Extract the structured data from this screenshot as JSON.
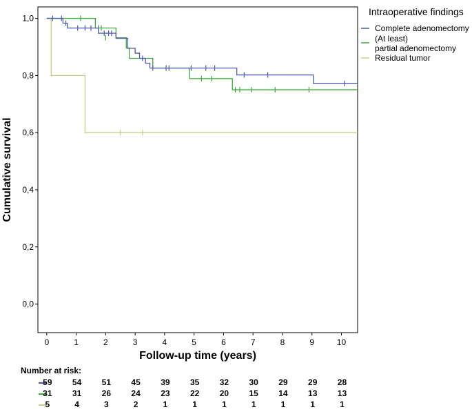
{
  "chart_data": {
    "type": "line",
    "subtype": "kaplan-meier",
    "xlabel": "Follow-up time (years)",
    "ylabel": "Cumulative survival",
    "xlim": [
      -0.3,
      10.55
    ],
    "ylim": [
      -0.1,
      1.04
    ],
    "xticks": [
      0,
      1,
      2,
      3,
      4,
      5,
      6,
      7,
      8,
      9,
      10
    ],
    "yticks": [
      0.0,
      0.2,
      0.4,
      0.6,
      0.8,
      1.0
    ],
    "ytick_labels": [
      "0,0",
      "0,2",
      "0,4",
      "0,6",
      "0,8",
      "1,0"
    ],
    "legend_title": "Intraoperative findings",
    "series": [
      {
        "name": "Complete adenomectomy",
        "color": "#4d5aa8",
        "steps": [
          [
            0,
            1.0
          ],
          [
            0.55,
            0.983
          ],
          [
            0.7,
            0.966
          ],
          [
            1.75,
            0.948
          ],
          [
            2.35,
            0.93
          ],
          [
            2.75,
            0.895
          ],
          [
            3.0,
            0.878
          ],
          [
            3.15,
            0.86
          ],
          [
            3.35,
            0.843
          ],
          [
            3.5,
            0.826
          ],
          [
            6.45,
            0.802
          ],
          [
            9.05,
            0.772
          ],
          [
            10.55,
            0.772
          ]
        ],
        "censor_x": [
          0.2,
          0.5,
          0.65,
          1.05,
          1.3,
          1.5,
          1.75,
          1.95,
          2.1,
          2.2,
          3.25,
          3.6,
          4.05,
          4.15,
          4.9,
          5.4,
          5.7,
          6.7,
          7.5,
          10.1
        ],
        "censor_y": [
          1.0,
          1.0,
          0.983,
          0.966,
          0.966,
          0.966,
          0.966,
          0.948,
          0.948,
          0.948,
          0.86,
          0.826,
          0.826,
          0.826,
          0.826,
          0.826,
          0.826,
          0.802,
          0.802,
          0.772
        ]
      },
      {
        "name": "(At least) partial adenomectomy",
        "color": "#3aa83a",
        "steps": [
          [
            0,
            1.0
          ],
          [
            1.65,
            0.966
          ],
          [
            2.35,
            0.932
          ],
          [
            2.7,
            0.896
          ],
          [
            2.8,
            0.86
          ],
          [
            3.6,
            0.826
          ],
          [
            4.85,
            0.789
          ],
          [
            6.3,
            0.75
          ],
          [
            10.55,
            0.75
          ]
        ],
        "censor_x": [
          1.15,
          1.85,
          2.0,
          5.25,
          5.6,
          6.4,
          6.55,
          6.95,
          7.75,
          8.9
        ],
        "censor_y": [
          1.0,
          0.966,
          0.932,
          0.789,
          0.789,
          0.75,
          0.75,
          0.75,
          0.75,
          0.75
        ]
      },
      {
        "name": "Residual tumor",
        "color": "#c9cc8a",
        "steps": [
          [
            0,
            1.0
          ],
          [
            0.15,
            0.8
          ],
          [
            1.3,
            0.6
          ],
          [
            10.55,
            0.6
          ]
        ],
        "censor_x": [
          2.5,
          3.25
        ],
        "censor_y": [
          0.6,
          0.6
        ]
      }
    ],
    "number_at_risk": {
      "title": "Number at risk:",
      "rows": [
        {
          "name": "Complete adenomectomy",
          "color": "#4d5aa8",
          "values": [
            "59",
            "54",
            "51",
            "45",
            "39",
            "35",
            "32",
            "30",
            "29",
            "29",
            "28"
          ]
        },
        {
          "name": "(At least) partial adenomectomy",
          "color": "#3aa83a",
          "values": [
            "31",
            "31",
            "26",
            "24",
            "23",
            "22",
            "20",
            "15",
            "14",
            "13",
            "13"
          ]
        },
        {
          "name": "Residual tumor",
          "color": "#c9cc8a",
          "values": [
            "5",
            "4",
            "3",
            "2",
            "1",
            "1",
            "1",
            "1",
            "1",
            "1",
            "1"
          ]
        }
      ]
    }
  },
  "legend": {
    "title": "Intraoperative findings",
    "items": [
      "Complete adenomectomy",
      "(At least) partial adenomectomy",
      "Residual tumor"
    ]
  }
}
